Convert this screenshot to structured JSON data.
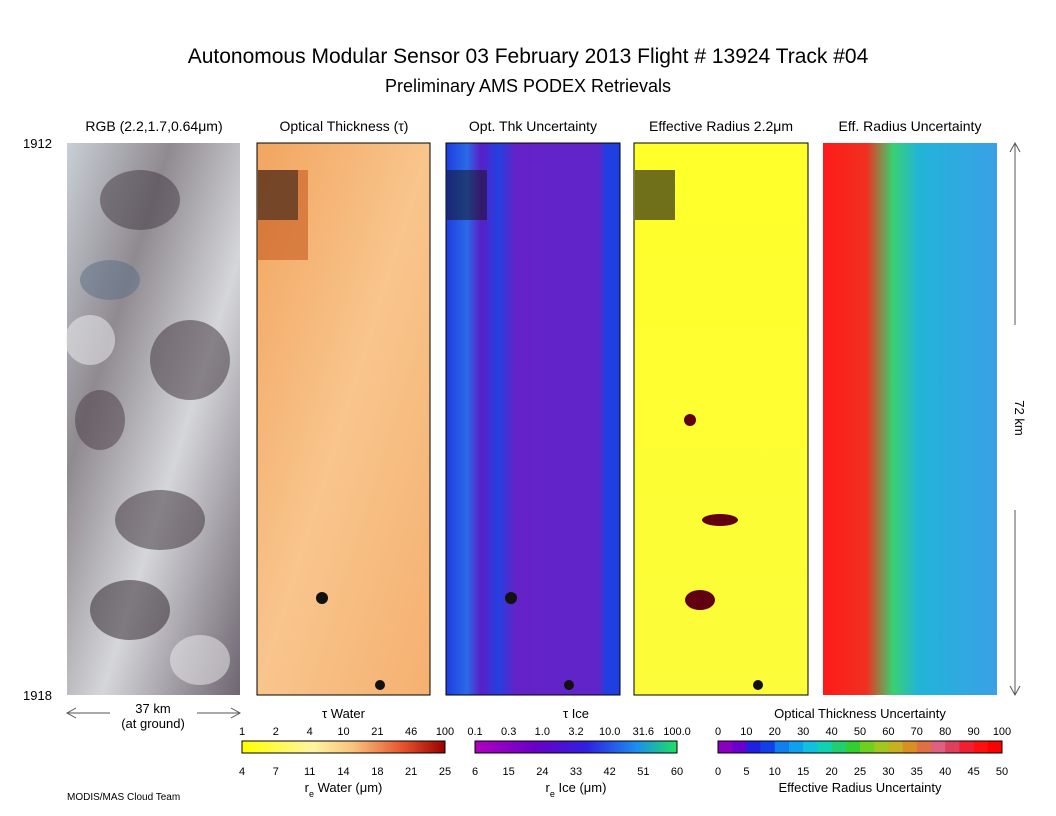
{
  "header": {
    "title": "Autonomous Modular Sensor  03 February 2013  Flight # 13924 Track #04",
    "subtitle": "Preliminary AMS PODEX Retrievals"
  },
  "panels": [
    {
      "title": "RGB (2.2,1.7,0.64μm)"
    },
    {
      "title": "Optical Thickness (τ)"
    },
    {
      "title": "Opt. Thk Uncertainty"
    },
    {
      "title": "Effective Radius 2.2μm"
    },
    {
      "title": "Eff. Radius Uncertainty"
    }
  ],
  "scan_start": "1912",
  "scan_end": "1918",
  "width_label": "37 km",
  "width_note": "(at ground)",
  "length_label": "72 km",
  "colorbars": [
    {
      "top_label": "τ Water",
      "top_ticks": [
        "1",
        "2",
        "4",
        "10",
        "21",
        "46",
        "100"
      ],
      "bottom_ticks": [
        "4",
        "7",
        "11",
        "14",
        "18",
        "21",
        "25"
      ],
      "bottom_label": [
        "r",
        "e",
        " Water (μm)"
      ]
    },
    {
      "top_label": "τ Ice",
      "top_ticks": [
        "0.1",
        "0.3",
        "1.0",
        "3.2",
        "10.0",
        "31.6",
        "100.0"
      ],
      "bottom_ticks": [
        "6",
        "15",
        "24",
        "33",
        "42",
        "51",
        "60"
      ],
      "bottom_label": [
        "r",
        "e",
        " Ice (μm)"
      ]
    },
    {
      "top_label": "Optical Thickness Uncertainty",
      "top_ticks": [
        "0",
        "10",
        "20",
        "30",
        "40",
        "50",
        "60",
        "70",
        "80",
        "90",
        "100"
      ],
      "bottom_ticks": [
        "0",
        "5",
        "10",
        "15",
        "20",
        "25",
        "30",
        "35",
        "40",
        "45",
        "50"
      ],
      "bottom_label": [
        "Effective Radius Uncertainty"
      ]
    }
  ],
  "footer": "MODIS/MAS Cloud Team"
}
